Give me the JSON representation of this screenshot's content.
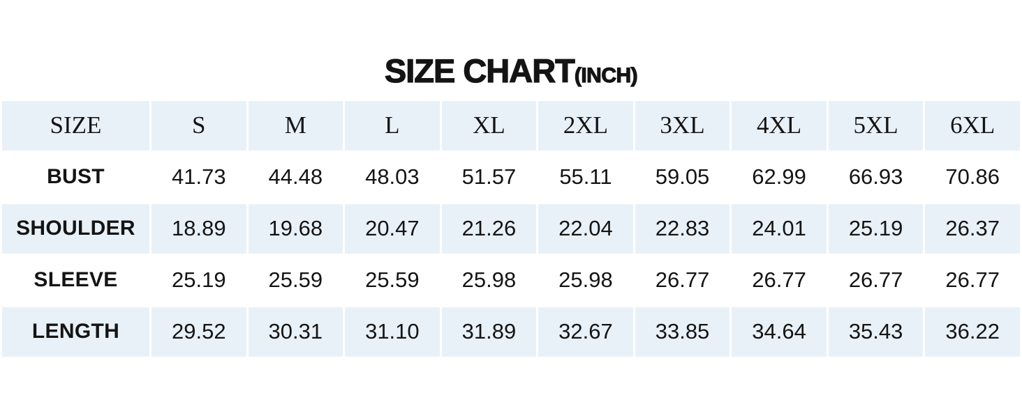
{
  "title": {
    "main": "SIZE CHART",
    "unit": "(INCH)"
  },
  "colors": {
    "row_alt_bg": "#e9f1f8",
    "text_color": "#141414",
    "page_bg": "#ffffff"
  },
  "table": {
    "header": [
      "SIZE",
      "S",
      "M",
      "L",
      "XL",
      "2XL",
      "3XL",
      "4XL",
      "5XL",
      "6XL"
    ],
    "rows": [
      {
        "label": "BUST",
        "values": [
          "41.73",
          "44.48",
          "48.03",
          "51.57",
          "55.11",
          "59.05",
          "62.99",
          "66.93",
          "70.86"
        ]
      },
      {
        "label": "SHOULDER",
        "values": [
          "18.89",
          "19.68",
          "20.47",
          "21.26",
          "22.04",
          "22.83",
          "24.01",
          "25.19",
          "26.37"
        ]
      },
      {
        "label": "SLEEVE",
        "values": [
          "25.19",
          "25.59",
          "25.59",
          "25.98",
          "25.98",
          "26.77",
          "26.77",
          "26.77",
          "26.77"
        ]
      },
      {
        "label": "LENGTH",
        "values": [
          "29.52",
          "30.31",
          "31.10",
          "31.89",
          "32.67",
          "33.85",
          "34.64",
          "35.43",
          "36.22"
        ]
      }
    ]
  },
  "chart_data": {
    "type": "table",
    "title": "SIZE CHART (INCH)",
    "unit": "inch",
    "categories": [
      "S",
      "M",
      "L",
      "XL",
      "2XL",
      "3XL",
      "4XL",
      "5XL",
      "6XL"
    ],
    "series": [
      {
        "name": "BUST",
        "values": [
          41.73,
          44.48,
          48.03,
          51.57,
          55.11,
          59.05,
          62.99,
          66.93,
          70.86
        ]
      },
      {
        "name": "SHOULDER",
        "values": [
          18.89,
          19.68,
          20.47,
          21.26,
          22.04,
          22.83,
          24.01,
          25.19,
          26.37
        ]
      },
      {
        "name": "SLEEVE",
        "values": [
          25.19,
          25.59,
          25.59,
          25.98,
          25.98,
          26.77,
          26.77,
          26.77,
          26.77
        ]
      },
      {
        "name": "LENGTH",
        "values": [
          29.52,
          30.31,
          31.1,
          31.89,
          32.67,
          33.85,
          34.64,
          35.43,
          36.22
        ]
      }
    ]
  }
}
